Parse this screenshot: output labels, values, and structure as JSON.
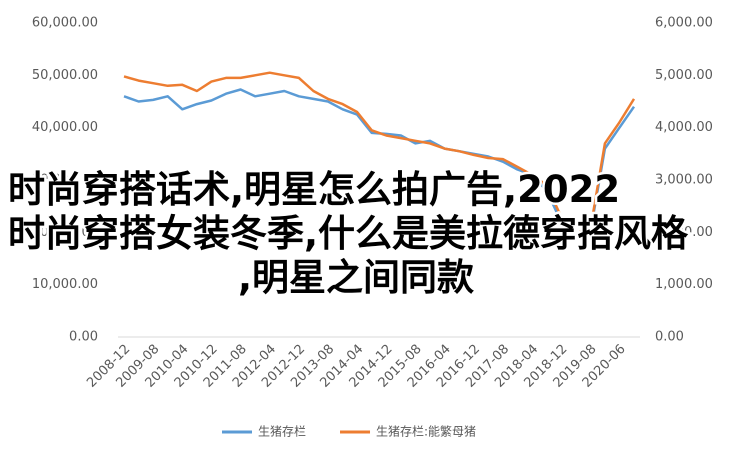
{
  "chart_data": {
    "type": "line",
    "categories": [
      "2008-12",
      null,
      "2009-08",
      null,
      "2010-04",
      null,
      "2010-12",
      null,
      "2011-08",
      null,
      "2012-04",
      null,
      "2012-12",
      null,
      "2013-08",
      null,
      "2014-04",
      null,
      "2014-12",
      null,
      "2015-08",
      null,
      "2016-04",
      null,
      "2016-12",
      null,
      "2017-08",
      null,
      "2018-04",
      null,
      "2018-12",
      null,
      "2019-08",
      null,
      "2020-06",
      null
    ],
    "series": [
      {
        "name": "生猪存栏",
        "color": "#5b9bd5",
        "axis": "y",
        "values": [
          46000,
          45000,
          45300,
          46000,
          43500,
          44500,
          45200,
          46500,
          47300,
          46000,
          46500,
          47000,
          46000,
          45500,
          45000,
          43500,
          42500,
          39000,
          38800,
          38500,
          37000,
          37500,
          36000,
          35500,
          35000,
          34500,
          33500,
          32000,
          31000,
          28000,
          22000,
          19500,
          20000,
          36000,
          40000,
          44000
        ]
      },
      {
        "name": "生猪存栏:能繁母猪",
        "color": "#ed7d31",
        "axis": "y2",
        "values": [
          4980,
          4900,
          4850,
          4800,
          4820,
          4700,
          4880,
          4950,
          4950,
          5000,
          5050,
          5000,
          4950,
          4700,
          4550,
          4450,
          4300,
          3950,
          3850,
          3800,
          3750,
          3700,
          3600,
          3550,
          3480,
          3420,
          3400,
          3250,
          3100,
          2900,
          2300,
          2000,
          2050,
          3700,
          4100,
          4550
        ]
      }
    ],
    "ylim": [
      0,
      60000
    ],
    "yticks": [
      {
        "value": 0,
        "label": "0.00"
      },
      {
        "value": 10000,
        "label": "10,000.00"
      },
      {
        "value": 20000,
        "label": "20,000.00"
      },
      {
        "value": 30000,
        "label": "30,000.00"
      },
      {
        "value": 40000,
        "label": "40,000.00"
      },
      {
        "value": 50000,
        "label": "50,000.00"
      },
      {
        "value": 60000,
        "label": "60,000.00"
      }
    ],
    "y2lim": [
      0,
      6000
    ],
    "y2ticks": [
      {
        "value": 0,
        "label": "0.00"
      },
      {
        "value": 1000,
        "label": "1,000.00"
      },
      {
        "value": 2000,
        "label": "2,000.00"
      },
      {
        "value": 3000,
        "label": "3,000.00"
      },
      {
        "value": 4000,
        "label": "4,000.00"
      },
      {
        "value": 5000,
        "label": "5,000.00"
      },
      {
        "value": 6000,
        "label": "6,000.00"
      }
    ],
    "legend": "bottom",
    "annotations": [
      "时尚穿搭话术,明星怎么拍广告,2022",
      "时尚穿搭女装冬季,什么是美拉德穿搭风格",
      ",明星之间同款"
    ]
  }
}
